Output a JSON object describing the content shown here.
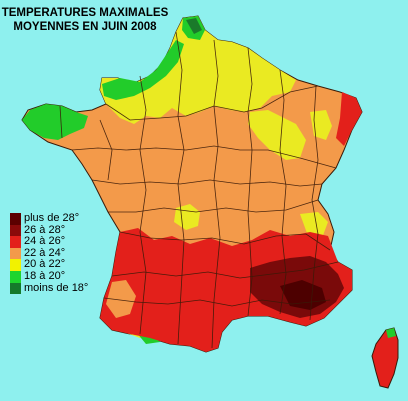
{
  "title": {
    "line1": "TEMPERATURES MAXIMALES",
    "line2": "MOYENNES EN JUIN 2008"
  },
  "legend": [
    {
      "label": "plus de 28°",
      "color": "#5c0000"
    },
    {
      "label": "26 à 28°",
      "color": "#8b0a0a"
    },
    {
      "label": "24 à 26°",
      "color": "#e3201b"
    },
    {
      "label": "22 à 24°",
      "color": "#f39a4a"
    },
    {
      "label": "20 à 22°",
      "color": "#f2f200"
    },
    {
      "label": "18 à 20°",
      "color": "#1fd42e"
    },
    {
      "label": "moins de 18°",
      "color": "#157a2b"
    }
  ],
  "colors": {
    "background": "#8ef0ee",
    "orange": "#f39a4a",
    "yellow": "#eaea22",
    "red": "#e3201b",
    "darkred": "#7a0a0a",
    "green": "#22cc2a",
    "darkgreen": "#1a7a2a",
    "border": "#5a2a10"
  }
}
